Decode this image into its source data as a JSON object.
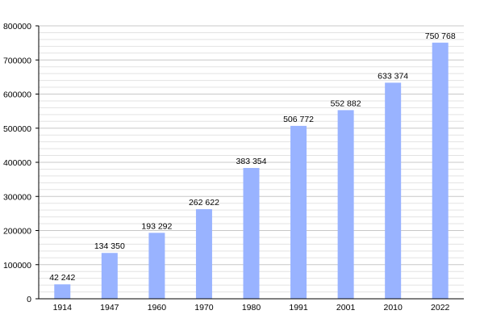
{
  "chart_data": {
    "type": "bar",
    "title": "",
    "xlabel": "",
    "ylabel": "",
    "categories": [
      "1914",
      "1947",
      "1960",
      "1970",
      "1980",
      "1991",
      "2001",
      "2010",
      "2022"
    ],
    "values": [
      42242,
      134350,
      193292,
      262622,
      383354,
      506772,
      552882,
      633374,
      750768
    ],
    "data_labels": [
      "42 242",
      "134 350",
      "193 292",
      "262 622",
      "383 354",
      "506 772",
      "552 882",
      "633 374",
      "750 768"
    ],
    "ylim": [
      0,
      800000
    ],
    "y_ticks": [
      0,
      100000,
      200000,
      300000,
      400000,
      500000,
      600000,
      700000,
      800000
    ],
    "y_tick_labels": [
      "0",
      "100000",
      "200000",
      "300000",
      "400000",
      "500000",
      "600000",
      "700000",
      "800000"
    ],
    "grid": true,
    "legend": "none",
    "colors": {
      "bar": "#99b3ff",
      "grid": "#c8c8c8",
      "axis": "#000000"
    }
  }
}
